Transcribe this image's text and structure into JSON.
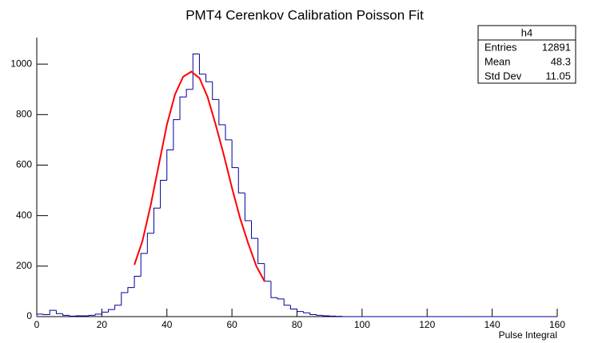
{
  "chart_data": {
    "type": "histogram",
    "title": "PMT4 Cerenkov Calibration Poisson Fit",
    "x_label": "Pulse Integral",
    "bins": [
      0,
      2,
      4,
      6,
      8,
      10,
      12,
      14,
      16,
      18,
      20,
      22,
      24,
      26,
      28,
      30,
      32,
      34,
      36,
      38,
      40,
      42,
      44,
      46,
      48,
      50,
      52,
      54,
      56,
      58,
      60,
      62,
      64,
      66,
      68,
      70,
      72,
      74,
      76,
      78,
      80,
      82,
      84,
      86,
      88,
      90,
      92,
      94,
      96,
      98,
      100,
      102,
      104,
      106,
      108,
      110,
      112,
      114,
      116,
      118,
      120,
      122,
      124,
      126,
      128,
      130,
      132,
      134,
      136,
      138,
      140,
      142,
      144,
      146,
      148,
      150,
      152,
      154,
      156,
      158,
      160
    ],
    "counts": [
      10,
      8,
      25,
      12,
      5,
      2,
      3,
      3,
      5,
      10,
      18,
      28,
      45,
      95,
      115,
      160,
      250,
      330,
      430,
      540,
      660,
      780,
      870,
      900,
      1040,
      960,
      930,
      860,
      760,
      700,
      590,
      490,
      380,
      310,
      210,
      140,
      75,
      70,
      45,
      30,
      20,
      15,
      8,
      5,
      3,
      2,
      1,
      0,
      0,
      0,
      0,
      0,
      0,
      0,
      0,
      0,
      0,
      0,
      0,
      0,
      0,
      0,
      0,
      0,
      0,
      0,
      0,
      0,
      0,
      0,
      0,
      0,
      0,
      0,
      0,
      0,
      0,
      0,
      0,
      0
    ],
    "color": "#000099",
    "fit": {
      "color": "#ff0000",
      "x": [
        30,
        32.5,
        35,
        37.5,
        40,
        42.5,
        45,
        47.5,
        50,
        52.5,
        55,
        57.5,
        60,
        62.5,
        65,
        67.5,
        70
      ],
      "values": [
        205,
        300,
        440,
        600,
        760,
        880,
        950,
        970,
        945,
        870,
        760,
        640,
        510,
        390,
        290,
        200,
        140
      ]
    },
    "xlim": [
      0,
      160
    ],
    "xticks": [
      0,
      20,
      40,
      60,
      80,
      100,
      120,
      140,
      160
    ],
    "ylim": [
      0,
      1105
    ],
    "yticks": [
      0,
      200,
      400,
      600,
      800,
      1000
    ],
    "stats": {
      "name": "h4",
      "rows": [
        {
          "name": "Entries",
          "value": 12891
        },
        {
          "name": "Mean",
          "value": 48.3
        },
        {
          "name": "Std Dev",
          "value": 11.05
        }
      ]
    }
  }
}
